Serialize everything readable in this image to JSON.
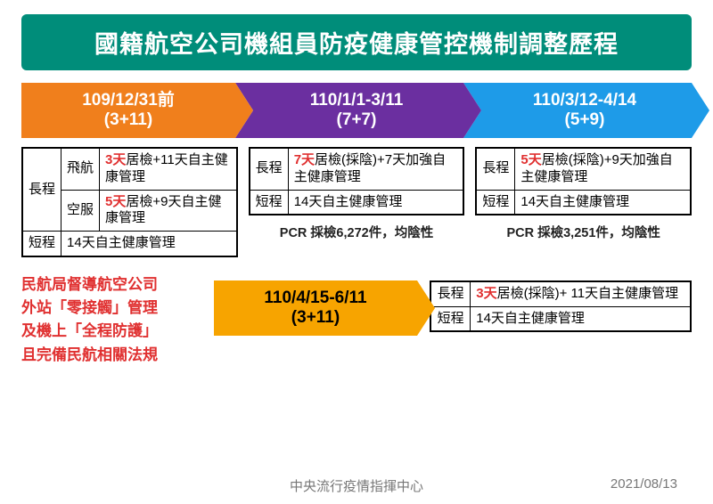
{
  "title": "國籍航空公司機組員防疫健康管控機制調整歷程",
  "colors": {
    "title_bg": "#008d7a",
    "arrow1": "#f07f1c",
    "arrow2": "#6b2fa0",
    "arrow3": "#1e9be8",
    "arrow4": "#f7a400",
    "red": "#e03030"
  },
  "phases": [
    {
      "date": "109/12/31前",
      "scheme": "(3+11)"
    },
    {
      "date": "110/1/1-3/11",
      "scheme": "(7+7)"
    },
    {
      "date": "110/3/12-4/14",
      "scheme": "(5+9)"
    },
    {
      "date": "110/4/15-6/11",
      "scheme": "(3+11)"
    }
  ],
  "table1": {
    "long_label": "長程",
    "flight_label": "飛航",
    "flight_rule_days": "3天",
    "flight_rule_rest": "居檢+11天自主健康管理",
    "crew_label": "空服",
    "crew_rule_days": "5天",
    "crew_rule_rest": "居檢+9天自主健康管理",
    "short_label": "短程",
    "short_rule": "14天自主健康管理"
  },
  "table2": {
    "long_label": "長程",
    "long_days": "7天",
    "long_rest": "居檢(採陰)+7天加強自主健康管理",
    "short_label": "短程",
    "short_rule": "14天自主健康管理",
    "pcr": "PCR 採檢6,272件，均陰性"
  },
  "table3": {
    "long_label": "長程",
    "long_days": "5天",
    "long_rest": "居檢(採陰)+9天加強自主健康管理",
    "short_label": "短程",
    "short_rule": "14天自主健康管理",
    "pcr": "PCR 採檢3,251件，均陰性"
  },
  "table4": {
    "long_label": "長程",
    "long_days": "3天",
    "long_rest": "居檢(採陰)+ 11天自主健康管理",
    "short_label": "短程",
    "short_rule": "14天自主健康管理"
  },
  "red_note": {
    "l1": "民航局督導航空公司",
    "l2": "外站「零接觸」管理",
    "l3": "及機上「全程防護」",
    "l4": "且完備民航相關法規"
  },
  "footer": {
    "org": "中央流行疫情指揮中心",
    "date": "2021/08/13"
  }
}
